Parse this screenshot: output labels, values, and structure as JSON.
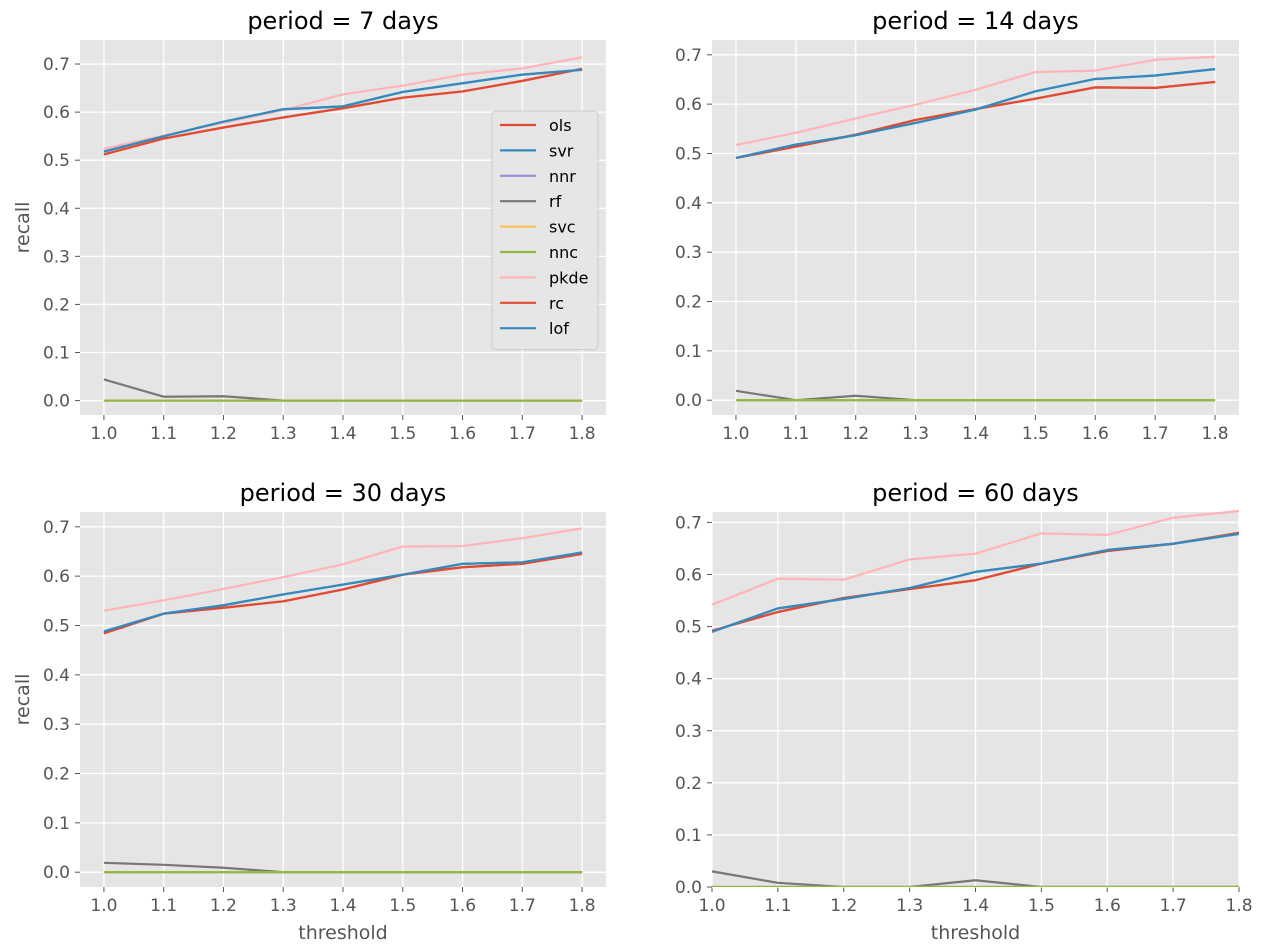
{
  "figure": {
    "ylabel": "recall",
    "xlabel": "threshold",
    "series_colors": {
      "ols": "#e24a33",
      "svr": "#348abd",
      "nnr": "#988ed5",
      "rf": "#777777",
      "svc": "#fbc15e",
      "nnc": "#8eba42",
      "pkde": "#ffb5b8",
      "rc": "#e24a33",
      "lof": "#348abd"
    },
    "style": {
      "axes_background": "#e5e5e5",
      "grid_color": "#ffffff"
    },
    "legend": {
      "location": "center-right",
      "subplot": 0,
      "entries": [
        "ols",
        "svr",
        "nnr",
        "rf",
        "svc",
        "nnc",
        "pkde",
        "rc",
        "lof"
      ]
    }
  },
  "chart_data": [
    {
      "type": "line",
      "title": "period = 7 days",
      "ylabel": "recall",
      "xlabel": "",
      "x": [
        1.0,
        1.1,
        1.2,
        1.3,
        1.4,
        1.5,
        1.6,
        1.7,
        1.8
      ],
      "xlim": [
        0.96,
        1.84
      ],
      "ylim": [
        -0.03,
        0.75
      ],
      "xticks": [
        "1.0",
        "1.1",
        "1.2",
        "1.3",
        "1.4",
        "1.5",
        "1.6",
        "1.7",
        "1.8"
      ],
      "yticks": [
        "0.0",
        "0.1",
        "0.2",
        "0.3",
        "0.4",
        "0.5",
        "0.6",
        "0.7"
      ],
      "grid": true,
      "series": [
        {
          "name": "ols",
          "values": [
            0.512,
            0.545,
            0.568,
            0.589,
            0.608,
            0.63,
            0.643,
            0.665,
            0.69
          ]
        },
        {
          "name": "svr",
          "values": [
            0.518,
            0.55,
            0.58,
            0.606,
            0.612,
            0.642,
            0.66,
            0.678,
            0.688
          ]
        },
        {
          "name": "nnr",
          "values": [
            0.0,
            0.0,
            0.0,
            0.0,
            0.0,
            0.0,
            0.0,
            0.0,
            0.0
          ]
        },
        {
          "name": "rf",
          "values": [
            0.044,
            0.008,
            0.009,
            0.0,
            0.0,
            0.0,
            0.0,
            0.0,
            0.0
          ]
        },
        {
          "name": "svc",
          "values": [
            0.0,
            0.0,
            0.0,
            0.0,
            0.0,
            0.0,
            0.0,
            0.0,
            0.0
          ]
        },
        {
          "name": "nnc",
          "values": [
            0.0,
            0.0,
            0.0,
            0.0,
            0.0,
            0.0,
            0.0,
            0.0,
            0.0
          ]
        },
        {
          "name": "pkde",
          "values": [
            0.524,
            0.551,
            0.578,
            0.604,
            0.637,
            0.655,
            0.678,
            0.691,
            0.714
          ]
        },
        {
          "name": "rc",
          "values": [
            0.512,
            0.545,
            0.568,
            0.589,
            0.608,
            0.63,
            0.643,
            0.665,
            0.69
          ]
        },
        {
          "name": "lof",
          "values": [
            0.518,
            0.55,
            0.58,
            0.606,
            0.612,
            0.642,
            0.66,
            0.678,
            0.688
          ]
        }
      ]
    },
    {
      "type": "line",
      "title": "period = 14 days",
      "ylabel": "",
      "xlabel": "",
      "x": [
        1.0,
        1.1,
        1.2,
        1.3,
        1.4,
        1.5,
        1.6,
        1.7,
        1.8
      ],
      "xlim": [
        0.96,
        1.84
      ],
      "ylim": [
        -0.03,
        0.73
      ],
      "xticks": [
        "1.0",
        "1.1",
        "1.2",
        "1.3",
        "1.4",
        "1.5",
        "1.6",
        "1.7",
        "1.8"
      ],
      "yticks": [
        "0.0",
        "0.1",
        "0.2",
        "0.3",
        "0.4",
        "0.5",
        "0.6",
        "0.7"
      ],
      "grid": true,
      "series": [
        {
          "name": "ols",
          "values": [
            0.491,
            0.514,
            0.538,
            0.568,
            0.59,
            0.611,
            0.634,
            0.633,
            0.645
          ]
        },
        {
          "name": "svr",
          "values": [
            0.491,
            0.518,
            0.537,
            0.562,
            0.589,
            0.626,
            0.651,
            0.658,
            0.671
          ]
        },
        {
          "name": "nnr",
          "values": [
            0.0,
            0.0,
            0.0,
            0.0,
            0.0,
            0.0,
            0.0,
            0.0,
            0.0
          ]
        },
        {
          "name": "rf",
          "values": [
            0.019,
            0.0,
            0.009,
            0.0,
            0.0,
            0.0,
            0.0,
            0.0,
            0.0
          ]
        },
        {
          "name": "svc",
          "values": [
            0.0,
            0.0,
            0.0,
            0.0,
            0.0,
            0.0,
            0.0,
            0.0,
            0.0
          ]
        },
        {
          "name": "nnc",
          "values": [
            0.0,
            0.0,
            0.0,
            0.0,
            0.0,
            0.0,
            0.0,
            0.0,
            0.0
          ]
        },
        {
          "name": "pkde",
          "values": [
            0.517,
            0.542,
            0.571,
            0.599,
            0.629,
            0.665,
            0.668,
            0.69,
            0.696
          ]
        },
        {
          "name": "rc",
          "values": [
            0.491,
            0.514,
            0.538,
            0.568,
            0.59,
            0.611,
            0.634,
            0.633,
            0.645
          ]
        },
        {
          "name": "lof",
          "values": [
            0.491,
            0.518,
            0.537,
            0.562,
            0.589,
            0.626,
            0.651,
            0.658,
            0.671
          ]
        }
      ]
    },
    {
      "type": "line",
      "title": "period = 30 days",
      "ylabel": "recall",
      "xlabel": "threshold",
      "x": [
        1.0,
        1.1,
        1.2,
        1.3,
        1.4,
        1.5,
        1.6,
        1.7,
        1.8
      ],
      "xlim": [
        0.96,
        1.84
      ],
      "ylim": [
        -0.03,
        0.73
      ],
      "xticks": [
        "1.0",
        "1.1",
        "1.2",
        "1.3",
        "1.4",
        "1.5",
        "1.6",
        "1.7",
        "1.8"
      ],
      "yticks": [
        "0.0",
        "0.1",
        "0.2",
        "0.3",
        "0.4",
        "0.5",
        "0.6",
        "0.7"
      ],
      "grid": true,
      "series": [
        {
          "name": "ols",
          "values": [
            0.484,
            0.524,
            0.536,
            0.549,
            0.573,
            0.603,
            0.618,
            0.625,
            0.645
          ]
        },
        {
          "name": "svr",
          "values": [
            0.488,
            0.524,
            0.541,
            0.563,
            0.583,
            0.603,
            0.625,
            0.628,
            0.648
          ]
        },
        {
          "name": "nnr",
          "values": [
            0.0,
            0.0,
            0.0,
            0.0,
            0.0,
            0.0,
            0.0,
            0.0,
            0.0
          ]
        },
        {
          "name": "rf",
          "values": [
            0.019,
            0.015,
            0.009,
            0.0,
            0.0,
            0.0,
            0.0,
            0.0,
            0.0
          ]
        },
        {
          "name": "svc",
          "values": [
            0.0,
            0.0,
            0.0,
            0.0,
            0.0,
            0.0,
            0.0,
            0.0,
            0.0
          ]
        },
        {
          "name": "nnc",
          "values": [
            0.0,
            0.0,
            0.0,
            0.0,
            0.0,
            0.0,
            0.0,
            0.0,
            0.0
          ]
        },
        {
          "name": "pkde",
          "values": [
            0.53,
            0.551,
            0.574,
            0.598,
            0.624,
            0.66,
            0.661,
            0.677,
            0.697
          ]
        },
        {
          "name": "rc",
          "values": [
            0.484,
            0.524,
            0.536,
            0.549,
            0.573,
            0.603,
            0.618,
            0.625,
            0.645
          ]
        },
        {
          "name": "lof",
          "values": [
            0.488,
            0.524,
            0.541,
            0.563,
            0.583,
            0.603,
            0.625,
            0.628,
            0.648
          ]
        }
      ]
    },
    {
      "type": "line",
      "title": "period = 60 days",
      "ylabel": "",
      "xlabel": "threshold",
      "x": [
        1.0,
        1.1,
        1.2,
        1.3,
        1.4,
        1.5,
        1.6,
        1.7,
        1.8
      ],
      "xlim": [
        1.0,
        1.8
      ],
      "ylim": [
        0.0,
        0.72
      ],
      "xticks": [
        "1.0",
        "1.1",
        "1.2",
        "1.3",
        "1.4",
        "1.5",
        "1.6",
        "1.7",
        "1.8"
      ],
      "yticks": [
        "0.0",
        "0.1",
        "0.2",
        "0.3",
        "0.4",
        "0.5",
        "0.6",
        "0.7"
      ],
      "grid": true,
      "series": [
        {
          "name": "ols",
          "values": [
            0.492,
            0.528,
            0.555,
            0.572,
            0.589,
            0.621,
            0.645,
            0.659,
            0.68
          ]
        },
        {
          "name": "svr",
          "values": [
            0.49,
            0.535,
            0.553,
            0.574,
            0.605,
            0.621,
            0.647,
            0.659,
            0.678
          ]
        },
        {
          "name": "nnr",
          "values": [
            0.0,
            0.0,
            0.0,
            0.0,
            0.0,
            0.0,
            0.0,
            0.0,
            0.0
          ]
        },
        {
          "name": "rf",
          "values": [
            0.03,
            0.008,
            0.0,
            0.0,
            0.013,
            0.0,
            0.0,
            0.0,
            0.0
          ]
        },
        {
          "name": "svc",
          "values": [
            0.0,
            0.0,
            0.0,
            0.0,
            0.0,
            0.0,
            0.0,
            0.0,
            0.0
          ]
        },
        {
          "name": "nnc",
          "values": [
            0.0,
            0.0,
            0.0,
            0.0,
            0.0,
            0.0,
            0.0,
            0.0,
            0.0
          ]
        },
        {
          "name": "pkde",
          "values": [
            0.542,
            0.592,
            0.59,
            0.629,
            0.64,
            0.679,
            0.676,
            0.709,
            0.722
          ]
        },
        {
          "name": "rc",
          "values": [
            0.492,
            0.528,
            0.555,
            0.572,
            0.589,
            0.621,
            0.645,
            0.659,
            0.68
          ]
        },
        {
          "name": "lof",
          "values": [
            0.49,
            0.535,
            0.553,
            0.574,
            0.605,
            0.621,
            0.647,
            0.659,
            0.678
          ]
        }
      ]
    }
  ]
}
